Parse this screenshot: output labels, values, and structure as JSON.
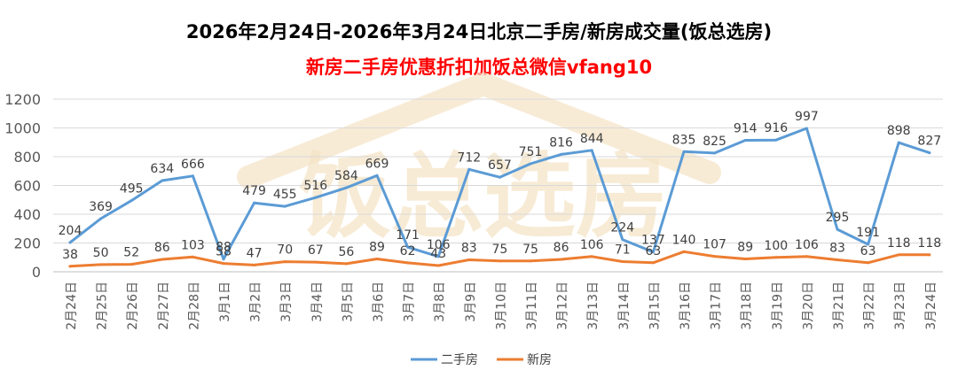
{
  "title": "2026年2月24日-2026年3月24日北京二手房/新房成交量(饭总选房)",
  "subtitle": "新房二手房优惠折扣加饭总微信vfang10",
  "watermark": "饭总选房",
  "colors": {
    "second_hand": "#5b9bd5",
    "new_home": "#ed7d31",
    "subtitle": "#ff0000",
    "watermark": "#f5e3c4"
  },
  "chart_data": {
    "type": "line",
    "title": "2026年2月24日-2026年3月24日北京二手房/新房成交量(饭总选房)",
    "categories": [
      "2月24日",
      "2月25日",
      "2月26日",
      "2月27日",
      "2月28日",
      "3月1日",
      "3月2日",
      "3月3日",
      "3月4日",
      "3月5日",
      "3月6日",
      "3月7日",
      "3月8日",
      "3月9日",
      "3月10日",
      "3月11日",
      "3月12日",
      "3月13日",
      "3月14日",
      "3月15日",
      "3月16日",
      "3月17日",
      "3月18日",
      "3月19日",
      "3月20日",
      "3月21日",
      "3月22日",
      "3月23日",
      "3月24日"
    ],
    "series": [
      {
        "name": "二手房",
        "values": [
          204,
          369,
          495,
          634,
          666,
          88,
          479,
          455,
          516,
          584,
          669,
          171,
          106,
          712,
          657,
          751,
          816,
          844,
          224,
          137,
          835,
          825,
          914,
          916,
          997,
          295,
          191,
          898,
          827
        ]
      },
      {
        "name": "新房",
        "values": [
          38,
          50,
          52,
          86,
          103,
          58,
          47,
          70,
          67,
          56,
          89,
          62,
          43,
          83,
          75,
          75,
          86,
          106,
          71,
          63,
          140,
          107,
          89,
          100,
          106,
          83,
          63,
          118,
          118
        ]
      }
    ],
    "ylim": [
      0,
      1200
    ],
    "yticks": [
      0,
      200,
      400,
      600,
      800,
      1000,
      1200
    ],
    "grid": true,
    "legend": "bottom-center",
    "xlabel": "",
    "ylabel": ""
  }
}
